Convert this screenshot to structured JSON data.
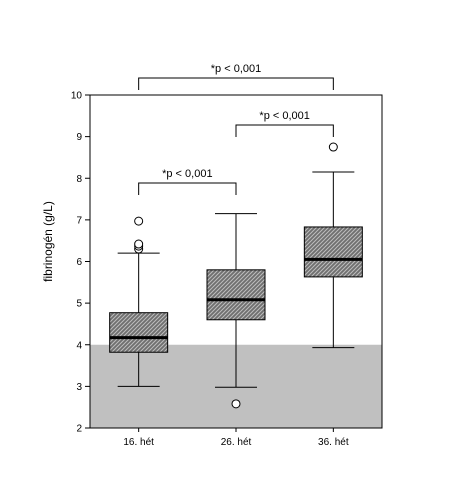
{
  "chart_data": {
    "type": "boxplot",
    "ylabel": "fibrinogén (g/L)",
    "xlabel": "",
    "ylim": [
      2,
      10
    ],
    "yticks": [
      2,
      3,
      4,
      5,
      6,
      7,
      8,
      9,
      10
    ],
    "categories": [
      "16. hét",
      "26. hét",
      "36. hét"
    ],
    "reference_band": {
      "from": 2,
      "to": 4,
      "color": "#c0c0c0"
    },
    "box_fill_color": "#808080",
    "grid": false,
    "boxes": [
      {
        "category": "16. hét",
        "whisker_low": 3.0,
        "q1": 3.82,
        "median": 4.17,
        "q3": 4.77,
        "whisker_high": 6.2,
        "outliers": [
          6.3,
          6.37,
          6.42,
          6.97
        ]
      },
      {
        "category": "26. hét",
        "whisker_low": 2.98,
        "q1": 4.6,
        "median": 5.08,
        "q3": 5.8,
        "whisker_high": 7.15,
        "outliers": [
          2.58
        ]
      },
      {
        "category": "36. hét",
        "whisker_low": 3.93,
        "q1": 5.63,
        "median": 6.05,
        "q3": 6.83,
        "whisker_high": 8.15,
        "outliers": [
          8.75
        ]
      }
    ],
    "annotations": [
      {
        "text": "*p < 0,001",
        "from": "16. hét",
        "to": "26. hét",
        "level": 1
      },
      {
        "text": "*p < 0,001",
        "from": "26. hét",
        "to": "36. hét",
        "level": 2
      },
      {
        "text": "*p < 0,001",
        "from": "16. hét",
        "to": "36. hét",
        "level": 3
      }
    ]
  }
}
